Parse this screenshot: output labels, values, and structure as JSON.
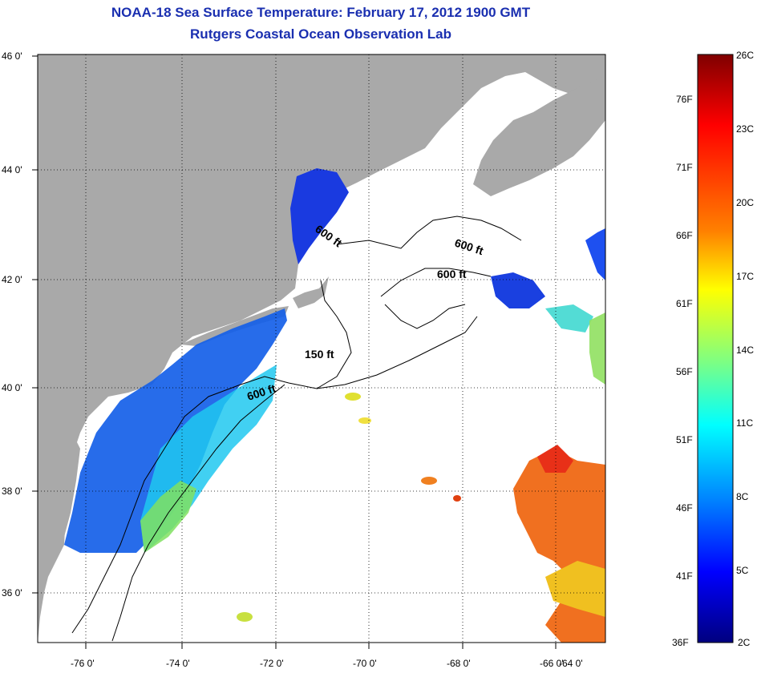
{
  "header": {
    "title": "NOAA-18 Sea Surface Temperature:  February 17, 2012 1900 GMT",
    "subtitle": "Rutgers Coastal Ocean Observation Lab"
  },
  "map": {
    "lat_ticks": [
      "46 0'",
      "44 0'",
      "42 0'",
      "40 0'",
      "38 0'",
      "36 0'"
    ],
    "lon_ticks": [
      "-76 0'",
      "-74 0'",
      "-72 0'",
      "-70 0'",
      "-68 0'",
      "-66 0'",
      "-64 0'"
    ],
    "contour_labels": [
      "600 ft",
      "600 ft",
      "600 ft",
      "150 ft",
      "600 ft"
    ],
    "colors": {
      "land": "#a9a9a9",
      "ocean": "#ffffff",
      "contour": "#000000"
    }
  },
  "colorbar": {
    "celsius": [
      "26C",
      "23C",
      "20C",
      "17C",
      "14C",
      "11C",
      "8C",
      "5C",
      "2C"
    ],
    "fahrenheit": [
      "76F",
      "71F",
      "66F",
      "61F",
      "56F",
      "51F",
      "46F",
      "41F",
      "36F"
    ],
    "gradient": [
      "#7f0000",
      "#ff0000",
      "#ff8000",
      "#ffff00",
      "#80ff80",
      "#00ffff",
      "#0080ff",
      "#0000ff",
      "#00007f"
    ]
  }
}
